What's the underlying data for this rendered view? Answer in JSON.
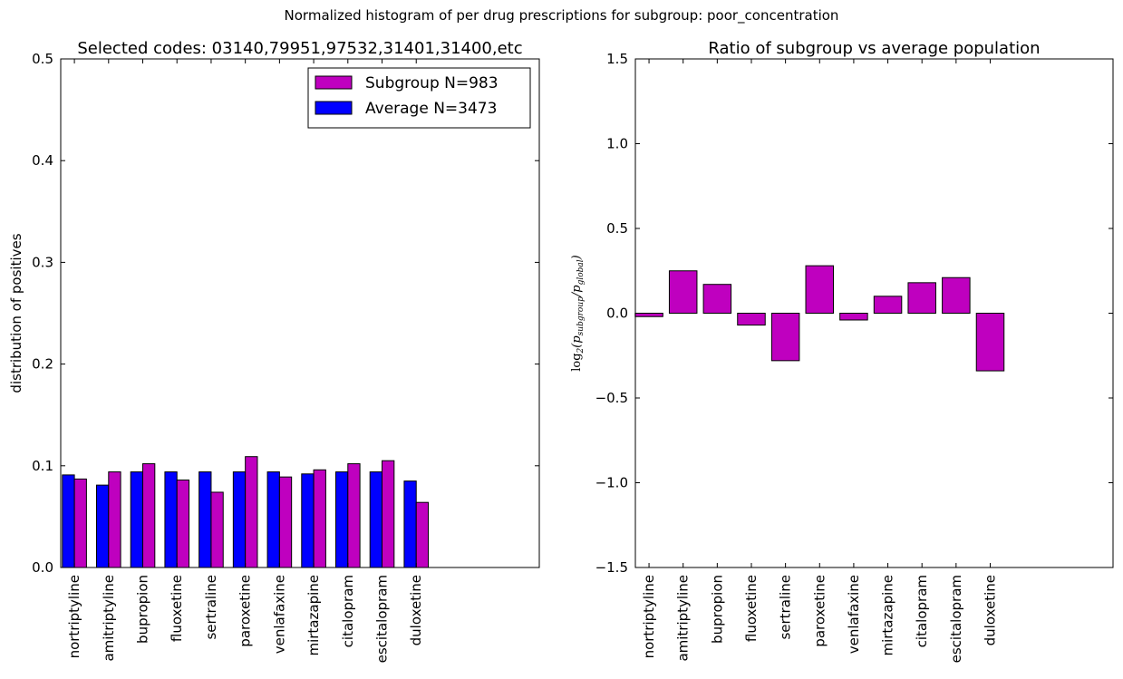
{
  "suptitle": "Normalized histogram of per drug prescriptions for subgroup: poor_concentration",
  "chart_data": [
    {
      "type": "bar",
      "title": "Selected codes: 03140,79951,97532,31401,31400,etc",
      "xlabel": "",
      "ylabel": "distribution of positives",
      "ylim": [
        0,
        0.5
      ],
      "yticks": [
        "0.0",
        "0.1",
        "0.2",
        "0.3",
        "0.4",
        "0.5"
      ],
      "legend_position": "top-right",
      "categories": [
        "nortriptyline",
        "amitriptyline",
        "bupropion",
        "fluoxetine",
        "sertraline",
        "paroxetine",
        "venlafaxine",
        "mirtazapine",
        "citalopram",
        "escitalopram",
        "duloxetine"
      ],
      "series": [
        {
          "name": "Average N=3473",
          "color": "#0000ff",
          "values": [
            0.091,
            0.081,
            0.094,
            0.094,
            0.094,
            0.094,
            0.094,
            0.092,
            0.094,
            0.094,
            0.085
          ]
        },
        {
          "name": "Subgroup N=983",
          "color": "#bf00bf",
          "values": [
            0.087,
            0.094,
            0.102,
            0.086,
            0.074,
            0.109,
            0.089,
            0.096,
            0.102,
            0.105,
            0.064
          ]
        }
      ],
      "legend": [
        {
          "label": "Subgroup N=983",
          "color": "#bf00bf"
        },
        {
          "label": "Average N=3473",
          "color": "#0000ff"
        }
      ]
    },
    {
      "type": "bar",
      "title": "Ratio of subgroup vs average population",
      "xlabel": "",
      "ylabel": "log2(p_subgroup/p_global)",
      "ylabel_parts": {
        "prefix": "log",
        "base": "2",
        "num": "p",
        "num_sub": "subgroup",
        "den": "p",
        "den_sub": "global"
      },
      "ylim": [
        -1.5,
        1.5
      ],
      "yticks": [
        "−1.5",
        "−1.0",
        "−0.5",
        "0.0",
        "0.5",
        "1.0",
        "1.5"
      ],
      "categories": [
        "nortriptyline",
        "amitriptyline",
        "bupropion",
        "fluoxetine",
        "sertraline",
        "paroxetine",
        "venlafaxine",
        "mirtazapine",
        "citalopram",
        "escitalopram",
        "duloxetine"
      ],
      "series": [
        {
          "color": "#bf00bf",
          "values": [
            -0.02,
            0.25,
            0.17,
            -0.07,
            -0.28,
            0.28,
            -0.04,
            0.1,
            0.18,
            0.21,
            -0.34
          ]
        }
      ]
    }
  ]
}
